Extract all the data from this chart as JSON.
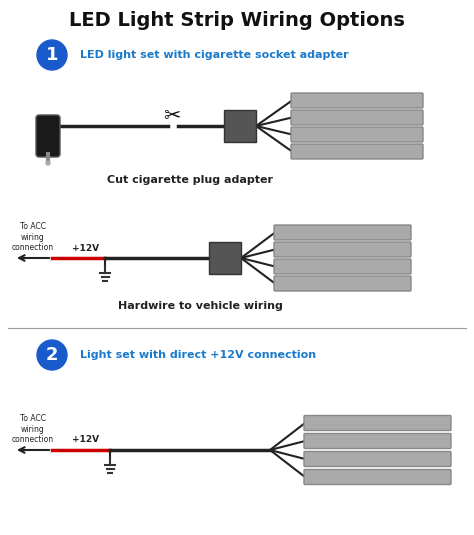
{
  "title": "LED Light Strip Wiring Options",
  "title_fontsize": 14,
  "title_fontweight": "bold",
  "bg_color": "#ffffff",
  "section1_label": "1",
  "section1_text": "LED light set with cigarette socket adapter",
  "section2_label": "2",
  "section2_text": "Light set with direct +12V connection",
  "caption1": "Cut cigarette plug adapter",
  "caption2": "Hardwire to vehicle wiring",
  "circle_color": "#1a5bcc",
  "circle_text_color": "#ffffff",
  "section_text_color": "#1a7acc",
  "wire_color_black": "#222222",
  "wire_color_red": "#cc0000",
  "box_color": "#555555",
  "light_bar_color": "#aaaaaa",
  "light_bar_edge": "#888888",
  "plug_color": "#1a1a1a",
  "label_color": "#222222",
  "divider_color": "#999999",
  "acc_text": "To ACC\nwiring\nconnection",
  "v12_text": "+12V",
  "ground_color": "#333333"
}
